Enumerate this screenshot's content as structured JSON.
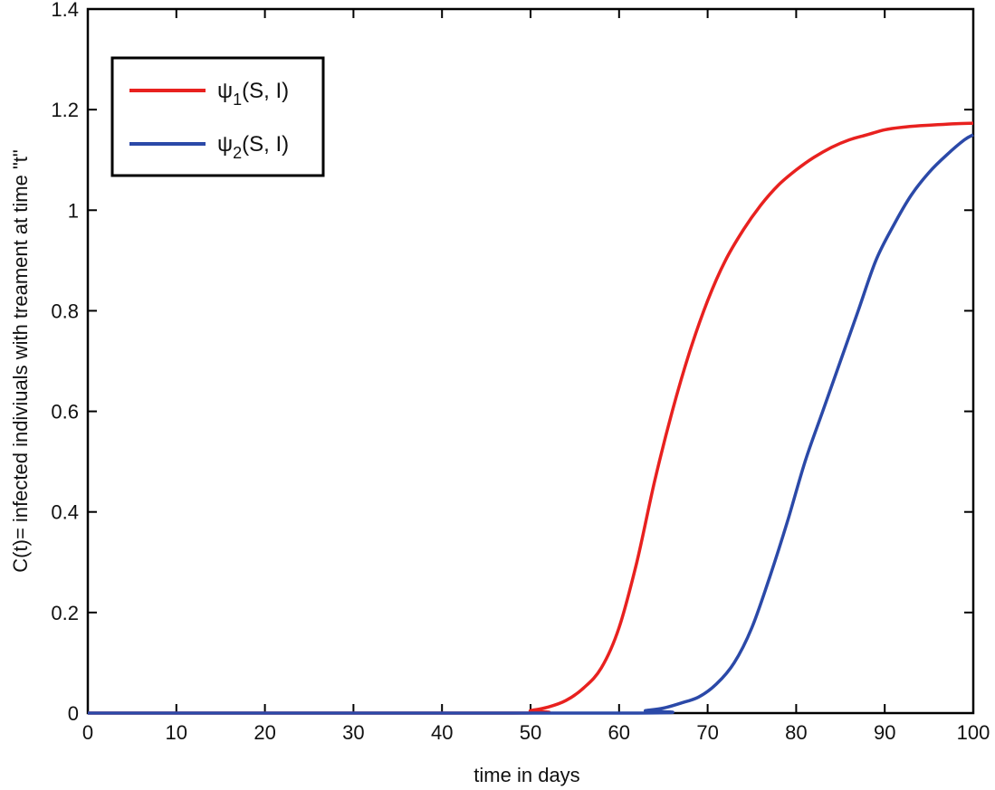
{
  "chart_data": {
    "type": "line",
    "title": "",
    "xlabel": "time in days",
    "ylabel": "C(t)= infected indiviuals with treament at time \"t\"",
    "xlim": [
      0,
      100
    ],
    "ylim": [
      0,
      1.4
    ],
    "xticks": [
      0,
      10,
      20,
      30,
      40,
      50,
      60,
      70,
      80,
      90,
      100
    ],
    "yticks": [
      0,
      0.2,
      0.4,
      0.6,
      0.8,
      1,
      1.2,
      1.4
    ],
    "xtick_labels": [
      "0",
      "10",
      "20",
      "30",
      "40",
      "50",
      "60",
      "70",
      "80",
      "90",
      "100"
    ],
    "ytick_labels": [
      "0",
      "0.2",
      "0.4",
      "0.6",
      "0.8",
      "1",
      "1.2",
      "1.4"
    ],
    "grid": false,
    "legend_position": "top-left",
    "series": [
      {
        "name": "ψ1(S, I)",
        "label_main": "ψ",
        "label_sub": "1",
        "label_rest": "(S, I)",
        "color": "#e8211f",
        "x": [
          0,
          48,
          50,
          52,
          54,
          56,
          58,
          60,
          62,
          64,
          66,
          68,
          70,
          72,
          74,
          76,
          78,
          80,
          82,
          84,
          86,
          88,
          90,
          92,
          94,
          96,
          98,
          100
        ],
        "y": [
          0,
          0,
          0.005,
          0.012,
          0.025,
          0.05,
          0.09,
          0.17,
          0.3,
          0.46,
          0.6,
          0.72,
          0.82,
          0.9,
          0.96,
          1.01,
          1.05,
          1.08,
          1.105,
          1.125,
          1.14,
          1.15,
          1.16,
          1.165,
          1.168,
          1.17,
          1.172,
          1.173
        ]
      },
      {
        "name": "ψ2(S, I)",
        "label_main": "ψ",
        "label_sub": "2",
        "label_rest": "(S, I)",
        "color": "#2b49a8",
        "x": [
          0,
          61,
          63,
          65,
          67,
          69,
          71,
          73,
          75,
          77,
          79,
          81,
          83,
          85,
          87,
          89,
          91,
          93,
          95,
          97,
          99,
          100
        ],
        "y": [
          0,
          0,
          0.005,
          0.01,
          0.02,
          0.032,
          0.058,
          0.1,
          0.17,
          0.27,
          0.38,
          0.5,
          0.6,
          0.7,
          0.8,
          0.9,
          0.97,
          1.03,
          1.075,
          1.11,
          1.14,
          1.15
        ]
      }
    ]
  }
}
